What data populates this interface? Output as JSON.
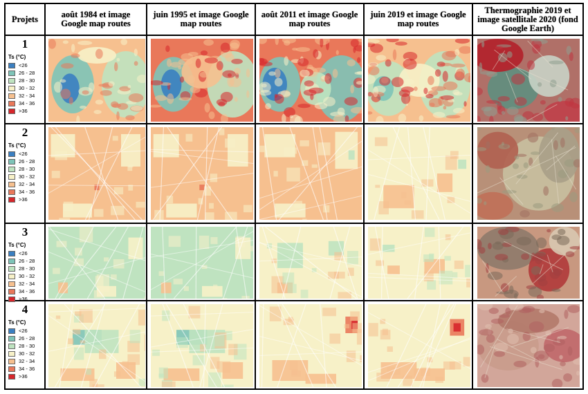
{
  "header": {
    "projects": "Projets",
    "col1": "août 1984 et image Google map routes",
    "col2": "juin 1995 et image Google map routes",
    "col3": "août 2011 et image Google map routes",
    "col4": "juin 2019 et image Google map routes",
    "col5": "Thermographie 2019 et image satellitale 2020 (fond Google Earth)"
  },
  "projects": [
    "1",
    "2",
    "3",
    "4"
  ],
  "legend": {
    "title": "Ts (°C)",
    "items": [
      {
        "label": "<26",
        "color": "#3a7fc1"
      },
      {
        "label": "26 - 28",
        "color": "#7ec4b8"
      },
      {
        "label": "28 - 30",
        "color": "#bfe3c0"
      },
      {
        "label": "30 - 32",
        "color": "#f7f1c8"
      },
      {
        "label": "32 - 34",
        "color": "#f6c08f"
      },
      {
        "label": "34 - 36",
        "color": "#e9785a"
      },
      {
        "label": ">36",
        "color": "#d7262b"
      }
    ]
  }
}
